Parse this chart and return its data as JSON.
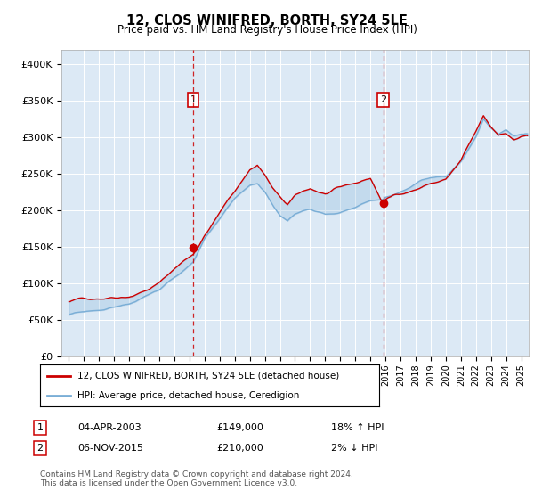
{
  "title": "12, CLOS WINIFRED, BORTH, SY24 5LE",
  "subtitle": "Price paid vs. HM Land Registry's House Price Index (HPI)",
  "bg_color": "#dce9f5",
  "red_color": "#cc0000",
  "blue_color": "#7aaed6",
  "ylim": [
    0,
    420000
  ],
  "yticks": [
    0,
    50000,
    100000,
    150000,
    200000,
    250000,
    300000,
    350000,
    400000
  ],
  "ytick_labels": [
    "£0",
    "£50K",
    "£100K",
    "£150K",
    "£200K",
    "£250K",
    "£300K",
    "£350K",
    "£400K"
  ],
  "sale1_year": 2003.25,
  "sale1_price": 149000,
  "sale2_year": 2015.85,
  "sale2_price": 210000,
  "legend_line1": "12, CLOS WINIFRED, BORTH, SY24 5LE (detached house)",
  "legend_line2": "HPI: Average price, detached house, Ceredigion",
  "table_row1_num": "1",
  "table_row1_date": "04-APR-2003",
  "table_row1_price": "£149,000",
  "table_row1_hpi": "18% ↑ HPI",
  "table_row2_num": "2",
  "table_row2_date": "06-NOV-2015",
  "table_row2_price": "£210,000",
  "table_row2_hpi": "2% ↓ HPI",
  "footer": "Contains HM Land Registry data © Crown copyright and database right 2024.\nThis data is licensed under the Open Government Licence v3.0.",
  "xmin": 1994.5,
  "xmax": 2025.5
}
